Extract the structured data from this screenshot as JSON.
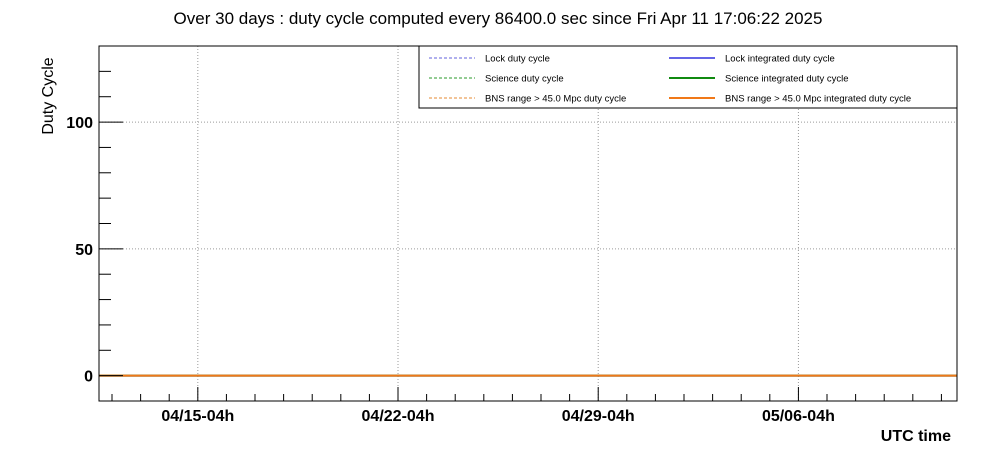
{
  "chart_data": {
    "type": "line",
    "title": "Over 30 days : duty cycle computed every 86400.0 sec since Fri Apr 11 17:06:22 2025",
    "xlabel": "UTC time",
    "ylabel": "Duty Cycle",
    "ylim": [
      -10,
      130
    ],
    "xlim_days": [
      0,
      30
    ],
    "grid": true,
    "legend_position": "top-right",
    "y_ticks": [
      {
        "value": 0,
        "label": "0"
      },
      {
        "value": 50,
        "label": "50"
      },
      {
        "value": 100,
        "label": "100"
      }
    ],
    "x_ticks": [
      {
        "day": 3.455,
        "label": "04/15-04h"
      },
      {
        "day": 10.455,
        "label": "04/22-04h"
      },
      {
        "day": 17.455,
        "label": "04/29-04h"
      },
      {
        "day": 24.455,
        "label": "05/06-04h"
      }
    ],
    "series": [
      {
        "name": "Lock duty cycle",
        "color": "#6060dd",
        "style": "dashed",
        "x": [
          0,
          30
        ],
        "y": [
          0,
          0
        ]
      },
      {
        "name": "Lock integrated duty cycle",
        "color": "#6464e6",
        "style": "solid",
        "x": [
          0,
          30
        ],
        "y": [
          0,
          0
        ]
      },
      {
        "name": "Science duty cycle",
        "color": "#2a9a2a",
        "style": "dashed",
        "x": [
          0,
          30
        ],
        "y": [
          0,
          0
        ]
      },
      {
        "name": "Science integrated duty cycle",
        "color": "#108a10",
        "style": "solid",
        "x": [
          0,
          30
        ],
        "y": [
          0,
          0
        ]
      },
      {
        "name": "BNS range > 45.0 Mpc duty cycle",
        "color": "#e58a30",
        "style": "dashed",
        "x": [
          0,
          30
        ],
        "y": [
          0,
          0
        ]
      },
      {
        "name": "BNS range > 45.0 Mpc integrated duty cycle",
        "color": "#f07818",
        "style": "solid",
        "x": [
          0,
          30
        ],
        "y": [
          0,
          0
        ]
      }
    ],
    "legend_columns": [
      [
        "Lock duty cycle",
        "Science duty cycle",
        "BNS range > 45.0 Mpc duty cycle"
      ],
      [
        "Lock integrated duty cycle",
        "Science integrated duty cycle",
        "BNS range > 45.0 Mpc integrated duty cycle"
      ]
    ]
  }
}
